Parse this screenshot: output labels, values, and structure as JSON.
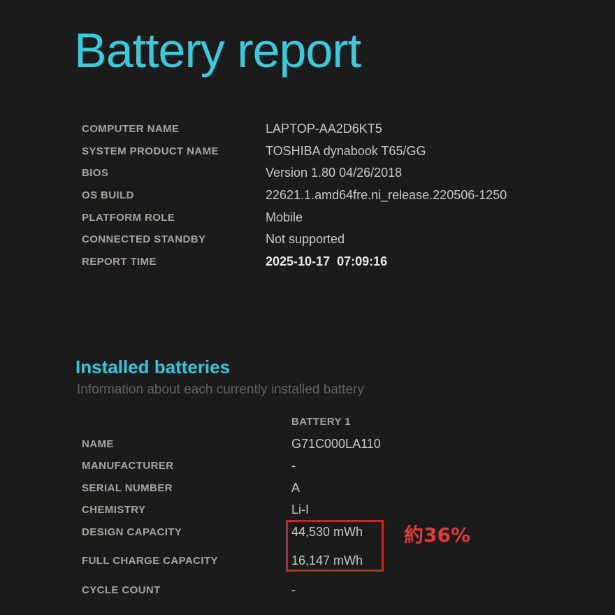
{
  "page": {
    "title": "Battery report"
  },
  "colors": {
    "background": "#1b1b1b",
    "accent_cyan": "#38cbdc",
    "label_gray": "#a7a4a0",
    "value_gray": "#cbc8c4",
    "subtitle_gray": "#616161",
    "highlight_box_red": "#c12828",
    "annotation_red": "#e23b3b"
  },
  "system_info": {
    "rows": [
      {
        "label": "COMPUTER NAME",
        "value": "LAPTOP-AA2D6KT5"
      },
      {
        "label": "SYSTEM PRODUCT NAME",
        "value": "TOSHIBA dynabook T65/GG"
      },
      {
        "label": "BIOS",
        "value": "Version 1.80 04/26/2018"
      },
      {
        "label": "OS BUILD",
        "value": "22621.1.amd64fre.ni_release.220506-1250"
      },
      {
        "label": "PLATFORM ROLE",
        "value": "Mobile"
      },
      {
        "label": "CONNECTED STANDBY",
        "value": "Not supported"
      },
      {
        "label": "REPORT TIME",
        "value": "2025-10-17  07:09:16"
      }
    ]
  },
  "installed_batteries": {
    "heading": "Installed batteries",
    "subheading": "Information about each currently installed battery",
    "column_header": "BATTERY 1",
    "rows": [
      {
        "label": "NAME",
        "value": "G71C000LA110"
      },
      {
        "label": "MANUFACTURER",
        "value": "-"
      },
      {
        "label": "SERIAL NUMBER",
        "value": "A"
      },
      {
        "label": "CHEMISTRY",
        "value": "Li-I"
      },
      {
        "label": "DESIGN CAPACITY",
        "value": "44,530 mWh"
      },
      {
        "label": "FULL CHARGE CAPACITY",
        "value": "16,147 mWh"
      },
      {
        "label": "CYCLE COUNT",
        "value": "-"
      }
    ]
  },
  "annotation": {
    "text": "約36%"
  }
}
